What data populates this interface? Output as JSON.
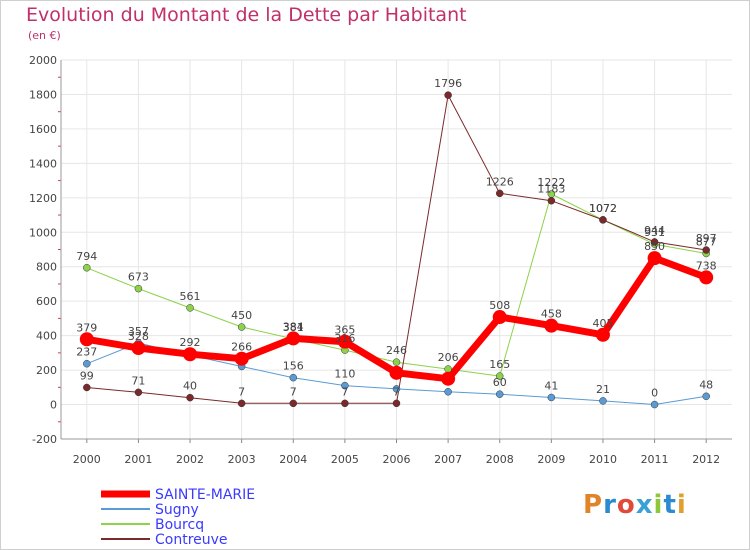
{
  "title": "Evolution du Montant de la Dette par Habitant",
  "subtitle": "(en €)",
  "logo": {
    "text": "Proxiti",
    "colors": [
      "#e0832a",
      "#2a8bd0",
      "#e04a3a",
      "#3aa0d8",
      "#8cc83a",
      "#2a8bd0",
      "#e0a030"
    ]
  },
  "chart_data": {
    "type": "line",
    "x": [
      "2000",
      "2001",
      "2002",
      "2003",
      "2004",
      "2005",
      "2006",
      "2007",
      "2008",
      "2009",
      "2010",
      "2011",
      "2012"
    ],
    "ylim": [
      -200,
      2000
    ],
    "yticks": [
      "-200",
      "0",
      "200",
      "400",
      "600",
      "800",
      "1000",
      "1200",
      "1400",
      "1600",
      "1800",
      "2000"
    ],
    "grid": true,
    "legend_position": "bottom-left",
    "series": [
      {
        "name": "SAINTE-MARIE",
        "color": "#ff0000",
        "width": 7,
        "marker": 7,
        "values": [
          379,
          328,
          292,
          266,
          384,
          365,
          184,
          150,
          508,
          458,
          405,
          850,
          738
        ],
        "labels": [
          "379",
          "328",
          "292",
          "266",
          "384",
          "365",
          "",
          "",
          "508",
          "458",
          "405",
          "850",
          "738"
        ]
      },
      {
        "name": "Sugny",
        "color": "#5a9bd5",
        "width": 1,
        "marker": 3.5,
        "values": [
          237,
          357,
          287,
          221,
          156,
          110,
          91,
          74,
          60,
          41,
          21,
          0,
          48
        ],
        "labels": [
          "237",
          "357",
          "",
          "",
          "156",
          "110",
          "",
          "",
          "60",
          "41",
          "21",
          "0",
          "48"
        ]
      },
      {
        "name": "Bourcq",
        "color": "#8cd24a",
        "width": 1,
        "marker": 3.5,
        "values": [
          794,
          673,
          561,
          450,
          381,
          316,
          246,
          206,
          165,
          1222,
          1072,
          931,
          877
        ],
        "labels": [
          "794",
          "673",
          "561",
          "450",
          "381",
          "316",
          "246",
          "206",
          "165",
          "1222",
          "1072",
          "931",
          "877"
        ]
      },
      {
        "name": "Contreuve",
        "color": "#7a2a2a",
        "width": 1,
        "marker": 3.5,
        "values": [
          99,
          71,
          40,
          7,
          7,
          7,
          7,
          1796,
          1226,
          1183,
          1072,
          944,
          897
        ],
        "labels": [
          "99",
          "71",
          "40",
          "7",
          "7",
          "7",
          "7",
          "1796",
          "1226",
          "1183",
          "1072",
          "944",
          "897"
        ]
      }
    ]
  }
}
